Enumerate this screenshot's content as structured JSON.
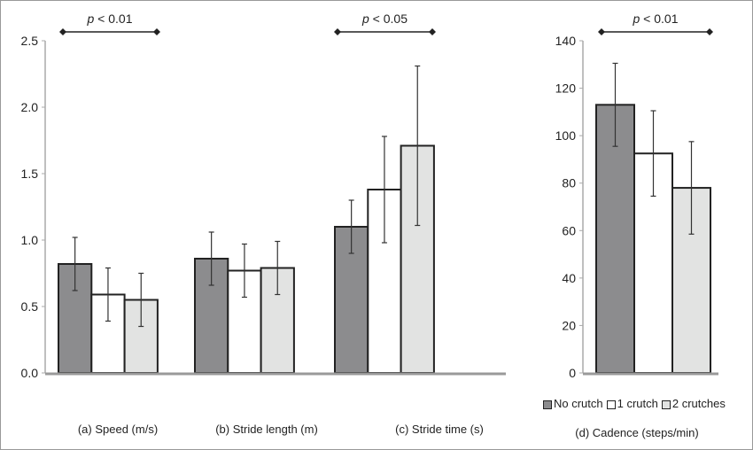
{
  "chart_data": [
    {
      "type": "bar",
      "categories": [
        "(a) Speed (m/s)",
        "(b) Stride length  (m)",
        "(c) Stride time (s)"
      ],
      "ylim": [
        0,
        2.5
      ],
      "yticks": [
        "0.0",
        "0.5",
        "1.0",
        "1.5",
        "2.0",
        "2.5"
      ],
      "grid": false,
      "series": [
        {
          "name": "No crutch",
          "color": "#8c8c8e",
          "values": [
            0.82,
            0.86,
            1.1
          ],
          "errors": [
            0.2,
            0.2,
            0.2
          ]
        },
        {
          "name": "1 crutch",
          "color": "#ffffff",
          "values": [
            0.59,
            0.77,
            1.38
          ],
          "errors": [
            0.2,
            0.2,
            0.4
          ]
        },
        {
          "name": "2 crutches",
          "color": "#e2e3e2",
          "values": [
            0.55,
            0.79,
            1.71
          ],
          "errors": [
            0.2,
            0.2,
            0.6
          ]
        }
      ],
      "annotations": [
        {
          "label_p": "p",
          "label_rest": " < 0.01",
          "category": "(a) Speed (m/s)"
        },
        {
          "label_p": "p",
          "label_rest": " < 0.05",
          "category": "(c) Stride time (s)"
        }
      ]
    },
    {
      "type": "bar",
      "categories": [
        "(d) Cadence (steps/min)"
      ],
      "ylim": [
        0,
        140
      ],
      "yticks": [
        "0",
        "20",
        "40",
        "60",
        "80",
        "100",
        "120",
        "140"
      ],
      "grid": false,
      "series": [
        {
          "name": "No crutch",
          "color": "#8c8c8e",
          "values": [
            113
          ],
          "errors": [
            17.5
          ]
        },
        {
          "name": "1 crutch",
          "color": "#ffffff",
          "values": [
            92.5
          ],
          "errors": [
            18
          ]
        },
        {
          "name": "2 crutches",
          "color": "#e2e3e2",
          "values": [
            78
          ],
          "errors": [
            19.5
          ]
        }
      ],
      "annotations": [
        {
          "label_p": "p",
          "label_rest": " < 0.01",
          "category": "(d) Cadence (steps/min)"
        }
      ],
      "legend": {
        "position": "bottom",
        "entries": [
          "No crutch",
          "1 crutch",
          "2 crutches"
        ]
      }
    }
  ]
}
